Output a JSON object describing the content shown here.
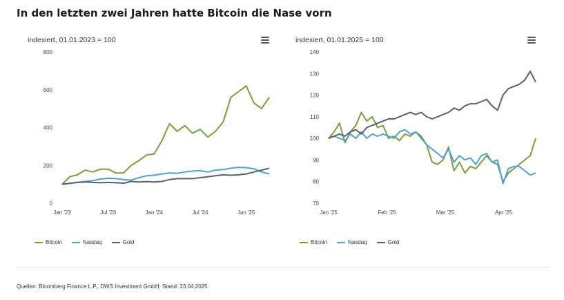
{
  "title": "In den letzten zwei Jahren hatte Bitcoin die Nase vorn",
  "source": "Quellen: Bloomberg Finance L.P., DWS Investment GmbH; Stand: 23.04.2025",
  "colors": {
    "bitcoin": "#76a03a",
    "nasdaq": "#4fa0d8",
    "gold": "#5a6068"
  },
  "icons": {
    "menu": "hamburger-menu-icon"
  },
  "chart_data": [
    {
      "type": "line",
      "subtitle": "indexiert, 01.01.2023 = 100",
      "ylim": [
        0,
        800
      ],
      "yticks": [
        "0",
        "200",
        "400",
        "600",
        "800"
      ],
      "xticks": [
        "Jan '23",
        "Jul '23",
        "Jan '24",
        "Jul '24",
        "Jan '25"
      ],
      "x": [
        "2023-01",
        "2023-02",
        "2023-03",
        "2023-04",
        "2023-05",
        "2023-06",
        "2023-07",
        "2023-08",
        "2023-09",
        "2023-10",
        "2023-11",
        "2023-12",
        "2024-01",
        "2024-02",
        "2024-03",
        "2024-04",
        "2024-05",
        "2024-06",
        "2024-07",
        "2024-08",
        "2024-09",
        "2024-10",
        "2024-11",
        "2024-12",
        "2025-01",
        "2025-02",
        "2025-03",
        "2025-04"
      ],
      "series": [
        {
          "name": "Bitcoin",
          "values": [
            100,
            140,
            150,
            175,
            165,
            180,
            180,
            160,
            160,
            200,
            225,
            255,
            260,
            330,
            420,
            380,
            410,
            370,
            390,
            350,
            380,
            430,
            560,
            590,
            620,
            530,
            500,
            560
          ]
        },
        {
          "name": "Nasdaq",
          "values": [
            100,
            105,
            110,
            115,
            120,
            128,
            132,
            130,
            125,
            122,
            135,
            145,
            148,
            155,
            160,
            158,
            165,
            170,
            172,
            165,
            175,
            178,
            185,
            190,
            188,
            182,
            165,
            155
          ]
        },
        {
          "name": "Gold",
          "values": [
            100,
            105,
            110,
            112,
            110,
            108,
            110,
            108,
            106,
            115,
            112,
            114,
            112,
            115,
            125,
            130,
            130,
            130,
            135,
            140,
            145,
            150,
            148,
            150,
            155,
            165,
            175,
            185
          ]
        }
      ],
      "legend": "bottom-left",
      "grid": false
    },
    {
      "type": "line",
      "subtitle": "indexiert, 01.01.2025 = 100",
      "ylim": [
        70,
        140
      ],
      "yticks": [
        "70",
        "80",
        "90",
        "100",
        "110",
        "120",
        "130",
        "140"
      ],
      "xticks": [
        "Jan '25",
        "Feb '25",
        "Mar '25",
        "Apr '25"
      ],
      "x": [
        "2025-01-01",
        "2025-01-04",
        "2025-01-07",
        "2025-01-10",
        "2025-01-13",
        "2025-01-16",
        "2025-01-19",
        "2025-01-22",
        "2025-01-25",
        "2025-01-28",
        "2025-01-31",
        "2025-02-03",
        "2025-02-06",
        "2025-02-09",
        "2025-02-12",
        "2025-02-15",
        "2025-02-18",
        "2025-02-21",
        "2025-02-24",
        "2025-02-27",
        "2025-03-02",
        "2025-03-05",
        "2025-03-08",
        "2025-03-11",
        "2025-03-14",
        "2025-03-17",
        "2025-03-20",
        "2025-03-23",
        "2025-03-26",
        "2025-03-29",
        "2025-04-01",
        "2025-04-04",
        "2025-04-07",
        "2025-04-10",
        "2025-04-13",
        "2025-04-16",
        "2025-04-19",
        "2025-04-22",
        "2025-04-23"
      ],
      "series": [
        {
          "name": "Bitcoin",
          "values": [
            100,
            103,
            107,
            98,
            103,
            106,
            112,
            108,
            110,
            105,
            106,
            100,
            101,
            99,
            102,
            101,
            103,
            101,
            97,
            89,
            88,
            90,
            96,
            85,
            89,
            84,
            87,
            86,
            89,
            92,
            89,
            88,
            80,
            84,
            86,
            88,
            90,
            92,
            100
          ]
        },
        {
          "name": "Nasdaq",
          "values": [
            100,
            101,
            100,
            99,
            102,
            100,
            103,
            100,
            102,
            101,
            102,
            101,
            100,
            103,
            104,
            102,
            103,
            100,
            97,
            95,
            93,
            91,
            95,
            89,
            92,
            90,
            91,
            88,
            92,
            93,
            89,
            90,
            79,
            86,
            87,
            87,
            85,
            83,
            84
          ]
        },
        {
          "name": "Gold",
          "values": [
            100,
            101,
            102,
            101,
            103,
            104,
            102,
            105,
            106,
            107,
            108,
            109,
            109,
            110,
            111,
            112,
            111,
            112,
            110,
            109,
            110,
            111,
            112,
            114,
            113,
            115,
            116,
            116,
            117,
            118,
            115,
            113,
            120,
            123,
            124,
            125,
            127,
            131,
            126
          ]
        }
      ],
      "legend": "bottom-left",
      "grid": false
    }
  ]
}
